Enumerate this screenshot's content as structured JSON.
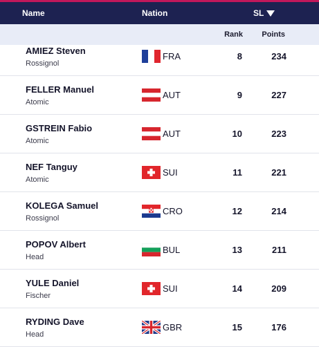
{
  "header": {
    "name_label": "Name",
    "nation_label": "Nation",
    "discipline_label": "SL",
    "sort_icon": "triangle-down-icon"
  },
  "subheader": {
    "rank_label": "Rank",
    "points_label": "Points"
  },
  "colors": {
    "header_bg": "#1d2251",
    "accent_bar": "#c2185b",
    "subheader_bg": "#e8ecf7"
  },
  "athletes": [
    {
      "name": "AMIEZ Steven",
      "brand": "Rossignol",
      "nation": "FRA",
      "flag": "fra-flag-icon",
      "rank": "8",
      "points": "234"
    },
    {
      "name": "FELLER Manuel",
      "brand": "Atomic",
      "nation": "AUT",
      "flag": "aut-flag-icon",
      "rank": "9",
      "points": "227"
    },
    {
      "name": "GSTREIN Fabio",
      "brand": "Atomic",
      "nation": "AUT",
      "flag": "aut-flag-icon",
      "rank": "10",
      "points": "223"
    },
    {
      "name": "NEF Tanguy",
      "brand": "Atomic",
      "nation": "SUI",
      "flag": "sui-flag-icon",
      "rank": "11",
      "points": "221"
    },
    {
      "name": "KOLEGA Samuel",
      "brand": "Rossignol",
      "nation": "CRO",
      "flag": "cro-flag-icon",
      "rank": "12",
      "points": "214"
    },
    {
      "name": "POPOV Albert",
      "brand": "Head",
      "nation": "BUL",
      "flag": "bul-flag-icon",
      "rank": "13",
      "points": "211"
    },
    {
      "name": "YULE Daniel",
      "brand": "Fischer",
      "nation": "SUI",
      "flag": "sui-flag-icon",
      "rank": "14",
      "points": "209"
    },
    {
      "name": "RYDING Dave",
      "brand": "Head",
      "nation": "GBR",
      "flag": "gbr-flag-icon",
      "rank": "15",
      "points": "176"
    }
  ]
}
